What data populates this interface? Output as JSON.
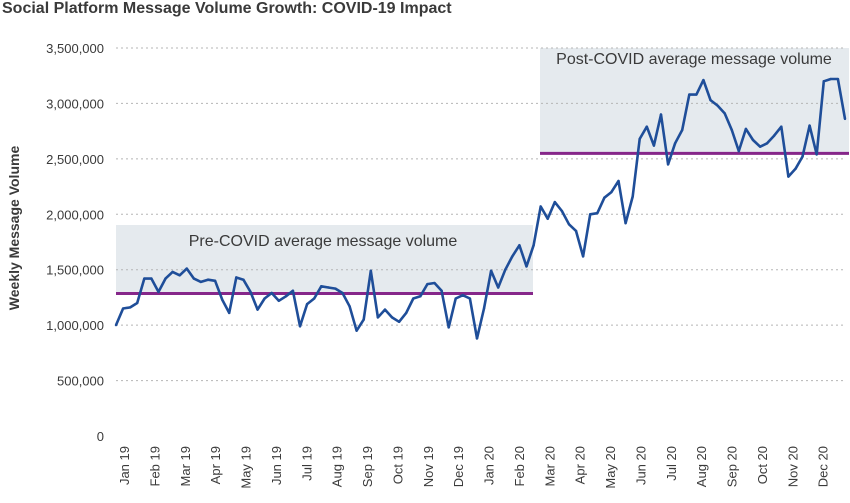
{
  "chart_data": {
    "type": "line",
    "title": "Social Platform Message Volume Growth: COVID-19 Impact",
    "ylabel": "Weekly Message Volume",
    "xlabel": "",
    "ylim": [
      0,
      3500000
    ],
    "y_ticks": [
      "0",
      "500,000",
      "1,000,000",
      "1,500,000",
      "2,000,000",
      "2,500,000",
      "3,000,000",
      "3,500,000"
    ],
    "y_tick_values": [
      0,
      500000,
      1000000,
      1500000,
      2000000,
      2500000,
      3000000,
      3500000
    ],
    "x_tick_labels": [
      "Jan 19",
      "Feb 19",
      "Mar 19",
      "Apr 19",
      "May 19",
      "Jun 19",
      "Jul 19",
      "Aug 19",
      "Sep 19",
      "Oct 19",
      "Nov 19",
      "Dec 19",
      "Jan 20",
      "Feb 20",
      "Mar 20",
      "Apr 20",
      "May 20",
      "Jun 20",
      "Jul 20",
      "Aug 20",
      "Sep 20",
      "Oct 20",
      "Nov 20",
      "Dec 20"
    ],
    "grid": true,
    "series": [
      {
        "values": [
          1000000,
          1150000,
          1160000,
          1200000,
          1420000,
          1420000,
          1300000,
          1420000,
          1480000,
          1450000,
          1510000,
          1420000,
          1390000,
          1410000,
          1400000,
          1230000,
          1110000,
          1430000,
          1410000,
          1300000,
          1140000,
          1240000,
          1290000,
          1220000,
          1260000,
          1310000,
          990000,
          1190000,
          1240000,
          1350000,
          1340000,
          1330000,
          1290000,
          1170000,
          950000,
          1050000,
          1490000,
          1070000,
          1140000,
          1070000,
          1030000,
          1110000,
          1240000,
          1260000,
          1370000,
          1380000,
          1310000,
          980000,
          1240000,
          1270000,
          1240000,
          880000,
          1150000,
          1490000,
          1340000,
          1500000,
          1620000,
          1720000,
          1530000,
          1720000,
          2070000,
          1960000,
          2110000,
          2030000,
          1910000,
          1850000,
          1620000,
          2000000,
          2010000,
          2150000,
          2200000,
          2300000,
          1920000,
          2160000,
          2680000,
          2790000,
          2620000,
          2900000,
          2450000,
          2640000,
          2760000,
          3080000,
          3080000,
          3210000,
          3030000,
          2980000,
          2910000,
          2760000,
          2570000,
          2770000,
          2670000,
          2610000,
          2640000,
          2710000,
          2790000,
          2340000,
          2410000,
          2520000,
          2800000,
          2540000,
          3200000,
          3220000,
          3220000,
          2860000
        ]
      }
    ],
    "averages": [
      {
        "label": "Pre-COVID average message volume",
        "value": 1285000,
        "from_index": 0,
        "to_index": 59
      },
      {
        "label": "Post-COVID average message volume",
        "value": 2550000,
        "from_index": 60,
        "to_index": 103
      }
    ],
    "colors": {
      "line": "#1f4e99",
      "average_line": "#86278a",
      "band": "#e5eaee",
      "grid": "#b5b5b5",
      "text": "#3a3a3a"
    }
  }
}
